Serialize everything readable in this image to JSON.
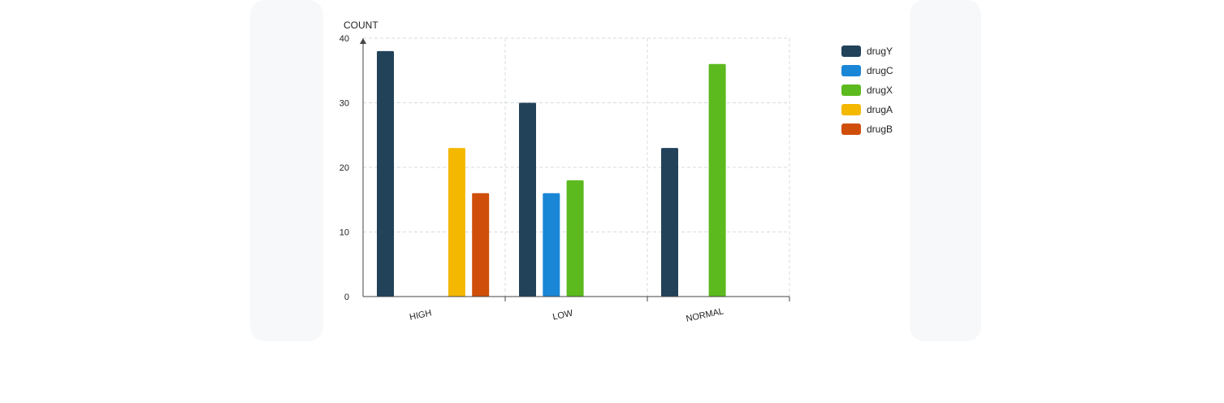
{
  "colors": {
    "drugY": "#22425a",
    "drugC": "#1a86d6",
    "drugX": "#5cb91e",
    "drugA": "#f4b800",
    "drugB": "#cf4f0a",
    "grid": "#d6dbe0",
    "axis": "#444444"
  },
  "chart_data": {
    "type": "bar",
    "title": "",
    "xlabel": "",
    "ylabel": "COUNT",
    "ylim": [
      0,
      40
    ],
    "yticks": [
      "0",
      "10",
      "20",
      "30",
      "40"
    ],
    "categories": [
      "HIGH",
      "LOW",
      "NORMAL"
    ],
    "series": [
      {
        "name": "drugY",
        "values": [
          38,
          30,
          23
        ]
      },
      {
        "name": "drugC",
        "values": [
          0,
          16,
          0
        ]
      },
      {
        "name": "drugX",
        "values": [
          0,
          18,
          36
        ]
      },
      {
        "name": "drugA",
        "values": [
          23,
          0,
          0
        ]
      },
      {
        "name": "drugB",
        "values": [
          16,
          0,
          0
        ]
      }
    ],
    "grid": true,
    "legend_position": "right"
  }
}
